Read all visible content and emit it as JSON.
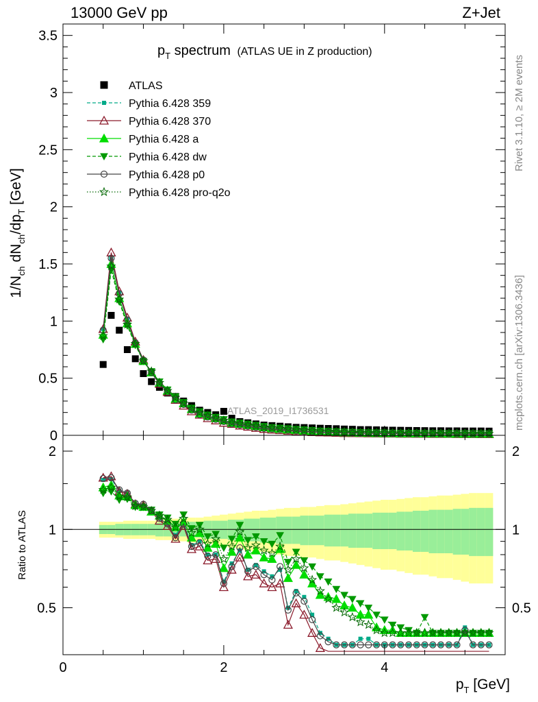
{
  "header": {
    "left": "13000 GeV pp",
    "right": "Z+Jet"
  },
  "side": {
    "rivet": "Rivet 3.1.10, ≥ 2M events",
    "mcplots": "mcplots.cern.ch [arXiv:1306.3436]"
  },
  "chart_data": [
    {
      "type": "scatter",
      "panel": "main",
      "title": "p_T spectrum",
      "title_main": "p",
      "title_sub": "T",
      "title_rest": " spectrum",
      "title_note": "(ATLAS UE in Z production)",
      "watermark": "ATLAS_2019_I1736531",
      "xlabel": "p_T [GeV]",
      "ylabel": "1/N_ch dN_ch/dp_T [GeV]",
      "xlim": [
        0,
        5.5
      ],
      "ylim": [
        0,
        3.6
      ],
      "y_ticks": [
        "0",
        "0.5",
        "1",
        "1.5",
        "2",
        "2.5",
        "3",
        "3.5"
      ],
      "y_tick_values": [
        0,
        0.5,
        1,
        1.5,
        2,
        2.5,
        3,
        3.5
      ],
      "legend": [
        "ATLAS",
        "Pythia 6.428 359",
        "Pythia 6.428 370",
        "Pythia 6.428 a",
        "Pythia 6.428 dw",
        "Pythia 6.428 p0",
        "Pythia 6.428 pro-q2o"
      ],
      "x": [
        0.5,
        0.6,
        0.7,
        0.8,
        0.9,
        1.0,
        1.1,
        1.2,
        1.3,
        1.4,
        1.5,
        1.6,
        1.7,
        1.8,
        1.9,
        2.0,
        2.1,
        2.2,
        2.3,
        2.4,
        2.5,
        2.6,
        2.7,
        2.8,
        2.9,
        3.0,
        3.1,
        3.2,
        3.3,
        3.4,
        3.5,
        3.6,
        3.7,
        3.8,
        3.9,
        4.0,
        4.1,
        4.2,
        4.3,
        4.4,
        4.5,
        4.6,
        4.7,
        4.8,
        4.9,
        5.0,
        5.1,
        5.2,
        5.3
      ],
      "series": [
        {
          "name": "ATLAS",
          "values": [
            0.62,
            1.05,
            0.92,
            0.75,
            0.67,
            0.54,
            0.47,
            0.42,
            0.37,
            0.34,
            0.3,
            0.26,
            0.22,
            0.2,
            0.18,
            0.21,
            0.15,
            0.12,
            0.11,
            0.1,
            0.09,
            0.085,
            0.08,
            0.075,
            0.07,
            0.068,
            0.065,
            0.062,
            0.06,
            0.058,
            0.055,
            0.053,
            0.05,
            0.05,
            0.048,
            0.046,
            0.045,
            0.044,
            0.043,
            0.042,
            0.041,
            0.04,
            0.04,
            0.039,
            0.039,
            0.038,
            0.038,
            0.038,
            0.037
          ]
        },
        {
          "name": "Pythia 6.428 359",
          "values": [
            0.93,
            1.55,
            1.25,
            1.02,
            0.82,
            0.66,
            0.55,
            0.45,
            0.38,
            0.31,
            0.27,
            0.22,
            0.18,
            0.16,
            0.14,
            0.12,
            0.1,
            0.09,
            0.08,
            0.07,
            0.06,
            0.055,
            0.05,
            0.045,
            0.04,
            0.035,
            0.03,
            0.028,
            0.026,
            0.024,
            0.022,
            0.021,
            0.02,
            0.019,
            0.018,
            0.017,
            0.016,
            0.015,
            0.015,
            0.014,
            0.014,
            0.013,
            0.013,
            0.013,
            0.012,
            0.012,
            0.012,
            0.011,
            0.011
          ]
        },
        {
          "name": "Pythia 6.428 370",
          "values": [
            0.93,
            1.6,
            1.26,
            1.03,
            0.82,
            0.66,
            0.55,
            0.45,
            0.38,
            0.31,
            0.26,
            0.21,
            0.18,
            0.15,
            0.13,
            0.11,
            0.1,
            0.085,
            0.075,
            0.065,
            0.055,
            0.05,
            0.045,
            0.04,
            0.035,
            0.031,
            0.028,
            0.026,
            0.024,
            0.022,
            0.02,
            0.019,
            0.018,
            0.017,
            0.016,
            0.015,
            0.015,
            0.014,
            0.014,
            0.013,
            0.013,
            0.012,
            0.012,
            0.012,
            0.011,
            0.011,
            0.011,
            0.01,
            0.01
          ]
        },
        {
          "name": "Pythia 6.428 a",
          "values": [
            0.88,
            1.5,
            1.2,
            0.98,
            0.8,
            0.65,
            0.55,
            0.46,
            0.39,
            0.32,
            0.28,
            0.23,
            0.19,
            0.17,
            0.15,
            0.13,
            0.11,
            0.1,
            0.09,
            0.08,
            0.07,
            0.06,
            0.055,
            0.05,
            0.045,
            0.04,
            0.035,
            0.032,
            0.03,
            0.028,
            0.026,
            0.024,
            0.022,
            0.021,
            0.02,
            0.019,
            0.018,
            0.017,
            0.017,
            0.016,
            0.016,
            0.015,
            0.015,
            0.014,
            0.014,
            0.014,
            0.013,
            0.013,
            0.013
          ]
        },
        {
          "name": "Pythia 6.428 dw",
          "values": [
            0.84,
            1.45,
            1.17,
            0.96,
            0.79,
            0.65,
            0.56,
            0.47,
            0.4,
            0.34,
            0.29,
            0.24,
            0.21,
            0.18,
            0.16,
            0.14,
            0.12,
            0.11,
            0.1,
            0.09,
            0.08,
            0.07,
            0.065,
            0.06,
            0.055,
            0.05,
            0.045,
            0.04,
            0.037,
            0.034,
            0.031,
            0.029,
            0.027,
            0.025,
            0.024,
            0.023,
            0.022,
            0.021,
            0.02,
            0.02,
            0.019,
            0.019,
            0.018,
            0.018,
            0.017,
            0.017,
            0.017,
            0.016,
            0.016
          ]
        },
        {
          "name": "Pythia 6.428 p0",
          "values": [
            0.92,
            1.55,
            1.24,
            1.01,
            0.81,
            0.66,
            0.55,
            0.45,
            0.38,
            0.31,
            0.27,
            0.22,
            0.18,
            0.16,
            0.14,
            0.12,
            0.1,
            0.09,
            0.08,
            0.07,
            0.06,
            0.055,
            0.05,
            0.045,
            0.04,
            0.035,
            0.031,
            0.028,
            0.026,
            0.024,
            0.022,
            0.021,
            0.02,
            0.019,
            0.018,
            0.017,
            0.016,
            0.015,
            0.015,
            0.014,
            0.014,
            0.013,
            0.013,
            0.013,
            0.012,
            0.012,
            0.012,
            0.011,
            0.011
          ]
        },
        {
          "name": "Pythia 6.428 pro-q2o",
          "values": [
            0.87,
            1.48,
            1.19,
            0.97,
            0.8,
            0.65,
            0.56,
            0.46,
            0.39,
            0.33,
            0.28,
            0.23,
            0.2,
            0.17,
            0.15,
            0.13,
            0.11,
            0.1,
            0.09,
            0.08,
            0.07,
            0.065,
            0.06,
            0.055,
            0.05,
            0.045,
            0.04,
            0.036,
            0.033,
            0.03,
            0.028,
            0.026,
            0.024,
            0.023,
            0.022,
            0.021,
            0.02,
            0.019,
            0.018,
            0.018,
            0.017,
            0.017,
            0.016,
            0.016,
            0.016,
            0.015,
            0.015,
            0.015,
            0.014
          ]
        }
      ],
      "colors": {
        "ATLAS": "#000000",
        "359": "#00aa88",
        "370": "#8b1a2b",
        "a": "#00cc00",
        "dw": "#009900",
        "p0": "#444444",
        "pro-q2o": "#006600"
      }
    },
    {
      "type": "line",
      "panel": "ratio",
      "ylabel": "Ratio to ATLAS",
      "xlabel": "p_T [GeV]",
      "xlim": [
        0,
        5.5
      ],
      "ylim": [
        0.33,
        2.3
      ],
      "y_ticks": [
        "0.5",
        "1",
        "2"
      ],
      "y_tick_values": [
        0.5,
        1,
        2
      ],
      "x_ticks": [
        "0",
        "2",
        "4"
      ],
      "x_tick_values": [
        0,
        2,
        4
      ],
      "x": [
        0.5,
        0.6,
        0.7,
        0.8,
        0.9,
        1.0,
        1.1,
        1.2,
        1.3,
        1.4,
        1.5,
        1.6,
        1.7,
        1.8,
        1.9,
        2.0,
        2.1,
        2.2,
        2.3,
        2.4,
        2.5,
        2.6,
        2.7,
        2.8,
        2.9,
        3.0,
        3.1,
        3.2,
        3.3,
        3.4,
        3.5,
        3.6,
        3.7,
        3.8,
        3.9,
        4.0,
        4.1,
        4.2,
        4.3,
        4.4,
        4.5,
        4.6,
        4.7,
        4.8,
        4.9,
        5.0,
        5.1,
        5.2,
        5.3
      ],
      "band_stat": [
        0.04,
        0.04,
        0.05,
        0.05,
        0.05,
        0.05,
        0.05,
        0.06,
        0.06,
        0.06,
        0.06,
        0.07,
        0.07,
        0.08,
        0.08,
        0.08,
        0.09,
        0.09,
        0.1,
        0.1,
        0.11,
        0.11,
        0.12,
        0.12,
        0.12,
        0.13,
        0.13,
        0.13,
        0.14,
        0.14,
        0.14,
        0.15,
        0.15,
        0.15,
        0.16,
        0.16,
        0.16,
        0.17,
        0.17,
        0.18,
        0.18,
        0.19,
        0.19,
        0.19,
        0.2,
        0.2,
        0.21,
        0.21,
        0.21
      ],
      "band_total": [
        0.07,
        0.07,
        0.07,
        0.08,
        0.08,
        0.08,
        0.08,
        0.09,
        0.09,
        0.1,
        0.1,
        0.11,
        0.11,
        0.12,
        0.13,
        0.14,
        0.15,
        0.16,
        0.17,
        0.18,
        0.18,
        0.19,
        0.2,
        0.21,
        0.21,
        0.22,
        0.22,
        0.23,
        0.24,
        0.24,
        0.25,
        0.26,
        0.27,
        0.28,
        0.29,
        0.3,
        0.3,
        0.31,
        0.32,
        0.33,
        0.33,
        0.34,
        0.35,
        0.35,
        0.36,
        0.37,
        0.38,
        0.38,
        0.38
      ],
      "series": [
        {
          "name": "Pythia 6.428 359",
          "values": [
            1.55,
            1.56,
            1.41,
            1.38,
            1.26,
            1.24,
            1.18,
            1.1,
            1.05,
            0.95,
            1.06,
            0.87,
            0.9,
            0.8,
            0.8,
            0.63,
            0.74,
            0.83,
            0.7,
            0.73,
            0.69,
            0.66,
            0.7,
            0.5,
            0.58,
            0.55,
            0.47,
            0.4,
            0.38,
            0.36,
            0.36,
            0.36,
            0.38,
            0.38,
            0.36,
            0.36,
            0.36,
            0.36,
            0.36,
            0.36,
            0.36,
            0.36,
            0.36,
            0.36,
            0.36,
            0.42,
            0.36,
            0.36,
            0.36
          ]
        },
        {
          "name": "Pythia 6.428 370",
          "values": [
            1.58,
            1.6,
            1.4,
            1.37,
            1.25,
            1.24,
            1.17,
            1.08,
            1.03,
            0.92,
            1.03,
            0.84,
            0.86,
            0.76,
            0.77,
            0.6,
            0.7,
            0.78,
            0.66,
            0.67,
            0.62,
            0.6,
            0.62,
            0.43,
            0.52,
            0.47,
            0.4,
            0.35,
            0.34,
            0.34,
            0.34,
            0.34,
            0.34,
            0.34,
            0.34,
            0.34,
            0.34,
            0.34,
            0.34,
            0.34,
            0.34,
            0.34,
            0.34,
            0.34,
            0.34,
            0.34,
            0.34,
            0.34,
            0.34
          ]
        },
        {
          "name": "Pythia 6.428 a",
          "values": [
            1.45,
            1.48,
            1.35,
            1.34,
            1.24,
            1.22,
            1.17,
            1.13,
            1.08,
            1.02,
            1.07,
            0.93,
            0.97,
            0.85,
            0.88,
            0.71,
            0.82,
            0.93,
            0.8,
            0.83,
            0.78,
            0.77,
            0.84,
            0.65,
            0.73,
            0.67,
            0.62,
            0.56,
            0.55,
            0.54,
            0.51,
            0.5,
            0.47,
            0.47,
            0.42,
            0.41,
            0.41,
            0.4,
            0.4,
            0.4,
            0.4,
            0.4,
            0.4,
            0.4,
            0.4,
            0.4,
            0.4,
            0.4,
            0.4
          ]
        },
        {
          "name": "Pythia 6.428 dw",
          "values": [
            1.38,
            1.4,
            1.3,
            1.31,
            1.22,
            1.22,
            1.19,
            1.14,
            1.11,
            1.05,
            1.14,
            1.01,
            1.04,
            0.94,
            0.96,
            0.85,
            0.92,
            1.04,
            0.91,
            0.94,
            0.9,
            0.88,
            0.95,
            0.75,
            0.82,
            0.76,
            0.72,
            0.66,
            0.63,
            0.59,
            0.56,
            0.54,
            0.52,
            0.5,
            0.47,
            0.45,
            0.43,
            0.42,
            0.41,
            0.4,
            0.46,
            0.4,
            0.4,
            0.4,
            0.4,
            0.4,
            0.4,
            0.4,
            0.4
          ]
        },
        {
          "name": "Pythia 6.428 p0",
          "values": [
            1.57,
            1.58,
            1.42,
            1.38,
            1.26,
            1.25,
            1.18,
            1.1,
            1.05,
            0.93,
            1.05,
            0.86,
            0.89,
            0.79,
            0.8,
            0.62,
            0.72,
            0.85,
            0.69,
            0.72,
            0.67,
            0.64,
            0.72,
            0.49,
            0.57,
            0.53,
            0.45,
            0.39,
            0.37,
            0.36,
            0.36,
            0.36,
            0.36,
            0.36,
            0.36,
            0.36,
            0.36,
            0.36,
            0.36,
            0.36,
            0.36,
            0.36,
            0.36,
            0.36,
            0.36,
            0.41,
            0.36,
            0.36,
            0.36
          ]
        },
        {
          "name": "Pythia 6.428 pro-q2o",
          "values": [
            1.42,
            1.45,
            1.34,
            1.33,
            1.23,
            1.22,
            1.18,
            1.13,
            1.09,
            1.02,
            1.1,
            0.97,
            1.0,
            0.88,
            0.92,
            0.77,
            0.86,
            0.98,
            0.85,
            0.87,
            0.83,
            0.81,
            0.86,
            0.7,
            0.77,
            0.71,
            0.64,
            0.58,
            0.54,
            0.5,
            0.48,
            0.46,
            0.44,
            0.43,
            0.41,
            0.4,
            0.4,
            0.4,
            0.4,
            0.4,
            0.4,
            0.4,
            0.4,
            0.4,
            0.4,
            0.4,
            0.4,
            0.4,
            0.4
          ]
        }
      ]
    }
  ]
}
